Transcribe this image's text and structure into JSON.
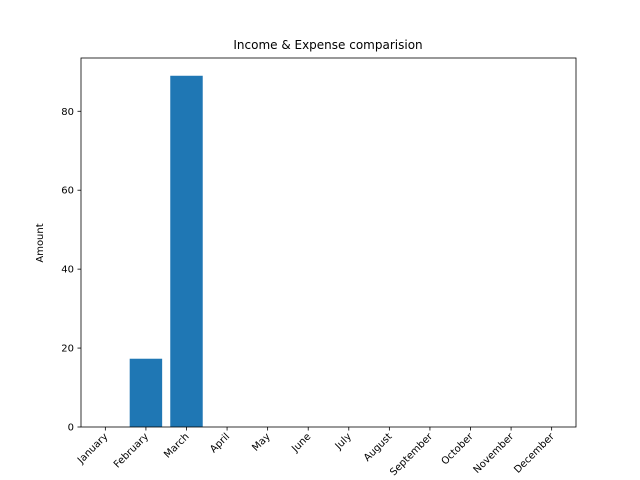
{
  "chart_data": {
    "type": "bar",
    "title": "Income & Expense comparision",
    "xlabel": "",
    "ylabel": "Amount",
    "categories": [
      "January",
      "February",
      "March",
      "April",
      "May",
      "June",
      "July",
      "August",
      "September",
      "October",
      "November",
      "December"
    ],
    "values": [
      0,
      17.3,
      89,
      0,
      0,
      0,
      0,
      0,
      0,
      0,
      0,
      0
    ],
    "ylim": [
      0,
      93.5
    ],
    "yticks": [
      0,
      20,
      40,
      60,
      80
    ],
    "grid": false,
    "bar_color": "#1f77b4"
  }
}
